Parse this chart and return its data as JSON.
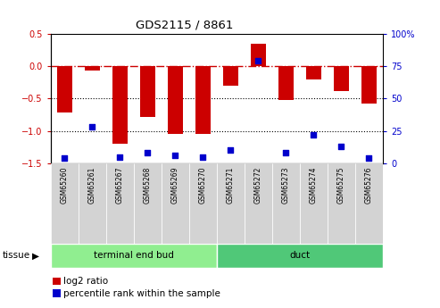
{
  "title": "GDS2115 / 8861",
  "samples": [
    "GSM65260",
    "GSM65261",
    "GSM65267",
    "GSM65268",
    "GSM65269",
    "GSM65270",
    "GSM65271",
    "GSM65272",
    "GSM65273",
    "GSM65274",
    "GSM65275",
    "GSM65276"
  ],
  "log2_ratio": [
    -0.72,
    -0.07,
    -1.2,
    -0.78,
    -1.05,
    -1.05,
    -0.3,
    0.35,
    -0.52,
    -0.2,
    -0.38,
    -0.58
  ],
  "percentile_rank": [
    4,
    28,
    5,
    8,
    6,
    5,
    10,
    79,
    8,
    22,
    13,
    4
  ],
  "groups": [
    {
      "label": "terminal end bud",
      "start": 0,
      "end": 6,
      "color": "#90EE90"
    },
    {
      "label": "duct",
      "start": 6,
      "end": 12,
      "color": "#50C878"
    }
  ],
  "bar_color": "#CC0000",
  "percentile_color": "#0000CC",
  "ylim_left": [
    -1.5,
    0.5
  ],
  "ylim_right": [
    0,
    100
  ],
  "yticks_left": [
    -1.5,
    -1.0,
    -0.5,
    0.0,
    0.5
  ],
  "yticks_right": [
    0,
    25,
    50,
    75,
    100
  ],
  "hline_zero_color": "#CC0000",
  "hline_dotted_color": "black",
  "tissue_label": "tissue",
  "legend_log2": "log2 ratio",
  "legend_pct": "percentile rank within the sample",
  "sample_box_color": "#D3D3D3",
  "plot_bg": "#FFFFFF"
}
